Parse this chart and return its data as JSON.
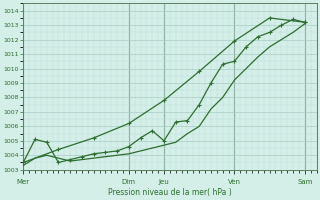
{
  "background_color": "#d4eee8",
  "grid_major_color": "#a8ccc4",
  "grid_minor_color": "#c0ddd8",
  "line_color": "#2d6e30",
  "xlabel": "Pression niveau de la mer( hPa )",
  "ylim": [
    1003,
    1014.5
  ],
  "ytick_min": 1003,
  "ytick_max": 1014,
  "xlim": [
    0,
    25
  ],
  "day_labels": [
    "Mer",
    "Dim",
    "Jeu",
    "Ven",
    "Sam"
  ],
  "day_positions": [
    0,
    9,
    12,
    18,
    24
  ],
  "vline_color": "#5a8060",
  "line1_x": [
    0,
    1,
    2,
    3,
    4,
    5,
    6,
    7,
    8,
    9,
    10,
    11,
    12,
    13,
    14,
    15,
    16,
    17,
    18,
    19,
    20,
    21,
    22,
    23,
    24
  ],
  "line1_y": [
    1003.3,
    1003.8,
    1004.0,
    1003.8,
    1003.6,
    1003.7,
    1003.8,
    1003.9,
    1004.0,
    1004.1,
    1004.3,
    1004.5,
    1004.7,
    1004.9,
    1005.5,
    1006.0,
    1007.2,
    1008.0,
    1009.2,
    1010.0,
    1010.8,
    1011.5,
    1012.0,
    1012.5,
    1013.1
  ],
  "line2_x": [
    0,
    1,
    2,
    3,
    4,
    5,
    6,
    7,
    8,
    9,
    10,
    11,
    12,
    13,
    14,
    15,
    16,
    17,
    18,
    19,
    20,
    21,
    22,
    23,
    24
  ],
  "line2_y": [
    1003.5,
    1005.1,
    1004.9,
    1003.5,
    1003.7,
    1003.9,
    1004.1,
    1004.2,
    1004.3,
    1004.6,
    1005.2,
    1005.7,
    1005.0,
    1006.3,
    1006.4,
    1007.5,
    1009.0,
    1010.3,
    1010.5,
    1011.5,
    1012.2,
    1012.5,
    1013.0,
    1013.4,
    1013.2
  ],
  "line3_x": [
    0,
    3,
    6,
    9,
    12,
    15,
    18,
    21,
    24
  ],
  "line3_y": [
    1003.5,
    1004.4,
    1005.2,
    1006.2,
    1007.8,
    1009.8,
    1011.9,
    1013.5,
    1013.2
  ]
}
